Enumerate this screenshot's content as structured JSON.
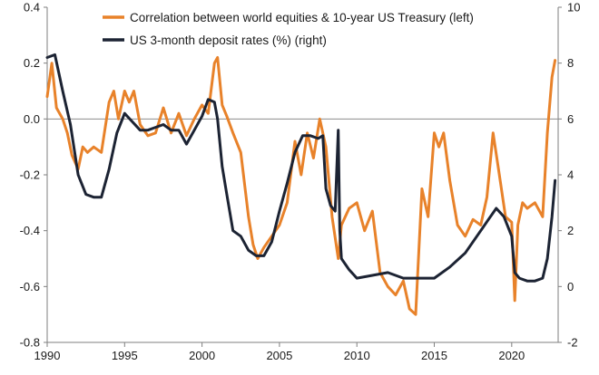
{
  "chart_data": {
    "type": "line",
    "title": "",
    "xlabel": "",
    "ylabel_left": "",
    "ylabel_right": "",
    "xlim": [
      1990,
      2023
    ],
    "ylim_left": [
      -0.8,
      0.4
    ],
    "ylim_right": [
      -2,
      10
    ],
    "x_ticks": [
      "1990",
      "1995",
      "2000",
      "2005",
      "2010",
      "2015",
      "2020"
    ],
    "y_ticks_left": [
      "0.4",
      "0.2",
      "0.0",
      "-0.2",
      "-0.4",
      "-0.6",
      "-0.8"
    ],
    "y_ticks_right": [
      "10",
      "8",
      "6",
      "4",
      "2",
      "0",
      "-2"
    ],
    "zero_line_left": 0.0,
    "legend_position": "top",
    "series": [
      {
        "name": "Correlation between world equities & 10-year US Treasury (left)",
        "axis": "left",
        "color": "#E8822A",
        "x": [
          1990.0,
          1990.3,
          1990.6,
          1991.0,
          1991.3,
          1991.6,
          1992.0,
          1992.3,
          1992.6,
          1993.0,
          1993.5,
          1994.0,
          1994.3,
          1994.6,
          1995.0,
          1995.3,
          1995.6,
          1996.0,
          1996.5,
          1997.0,
          1997.5,
          1998.0,
          1998.5,
          1999.0,
          1999.5,
          2000.0,
          2000.4,
          2000.8,
          2001.0,
          2001.3,
          2001.6,
          2002.0,
          2002.5,
          2003.0,
          2003.3,
          2003.6,
          2004.0,
          2004.5,
          2005.0,
          2005.5,
          2006.0,
          2006.4,
          2006.8,
          2007.2,
          2007.6,
          2008.0,
          2008.4,
          2008.8,
          2009.0,
          2009.5,
          2010.0,
          2010.5,
          2011.0,
          2011.5,
          2012.0,
          2012.5,
          2013.0,
          2013.4,
          2013.8,
          2014.2,
          2014.6,
          2015.0,
          2015.3,
          2015.6,
          2016.0,
          2016.5,
          2017.0,
          2017.5,
          2018.0,
          2018.4,
          2018.8,
          2019.2,
          2019.6,
          2020.0,
          2020.2,
          2020.4,
          2020.7,
          2021.0,
          2021.5,
          2022.0,
          2022.3,
          2022.6,
          2022.8
        ],
        "y": [
          0.08,
          0.2,
          0.04,
          0.0,
          -0.05,
          -0.13,
          -0.18,
          -0.1,
          -0.12,
          -0.1,
          -0.12,
          0.06,
          0.1,
          0.0,
          0.1,
          0.06,
          0.1,
          -0.02,
          -0.06,
          -0.05,
          0.04,
          -0.05,
          0.02,
          -0.06,
          0.0,
          0.05,
          0.02,
          0.2,
          0.22,
          0.05,
          0.01,
          -0.05,
          -0.12,
          -0.35,
          -0.45,
          -0.5,
          -0.46,
          -0.42,
          -0.38,
          -0.3,
          -0.08,
          -0.2,
          -0.05,
          -0.14,
          0.0,
          -0.1,
          -0.35,
          -0.5,
          -0.38,
          -0.32,
          -0.3,
          -0.4,
          -0.33,
          -0.55,
          -0.6,
          -0.63,
          -0.58,
          -0.68,
          -0.7,
          -0.25,
          -0.35,
          -0.05,
          -0.1,
          -0.05,
          -0.22,
          -0.38,
          -0.42,
          -0.36,
          -0.38,
          -0.28,
          -0.05,
          -0.2,
          -0.35,
          -0.37,
          -0.65,
          -0.38,
          -0.3,
          -0.32,
          -0.3,
          -0.35,
          -0.05,
          0.15,
          0.21
        ]
      },
      {
        "name": "US 3-month deposit rates (%) (right)",
        "axis": "right",
        "color": "#1C2333",
        "x": [
          1990.0,
          1990.5,
          1991.0,
          1991.5,
          1992.0,
          1992.5,
          1993.0,
          1993.5,
          1994.0,
          1994.5,
          1995.0,
          1995.5,
          1996.0,
          1996.5,
          1997.0,
          1997.5,
          1998.0,
          1998.5,
          1999.0,
          1999.5,
          2000.0,
          2000.4,
          2000.8,
          2001.0,
          2001.3,
          2001.6,
          2002.0,
          2002.5,
          2003.0,
          2003.5,
          2004.0,
          2004.5,
          2005.0,
          2005.5,
          2006.0,
          2006.5,
          2007.0,
          2007.5,
          2007.8,
          2008.0,
          2008.3,
          2008.6,
          2008.8,
          2008.9,
          2009.0,
          2009.5,
          2010.0,
          2011.0,
          2012.0,
          2013.0,
          2014.0,
          2015.0,
          2016.0,
          2017.0,
          2018.0,
          2018.5,
          2019.0,
          2019.5,
          2020.0,
          2020.2,
          2020.5,
          2021.0,
          2021.5,
          2022.0,
          2022.3,
          2022.6,
          2022.8
        ],
        "y": [
          8.2,
          8.3,
          7.0,
          5.8,
          4.0,
          3.3,
          3.2,
          3.2,
          4.2,
          5.5,
          6.2,
          5.9,
          5.6,
          5.6,
          5.7,
          5.8,
          5.6,
          5.6,
          5.1,
          5.6,
          6.1,
          6.7,
          6.6,
          6.0,
          4.3,
          3.3,
          2.0,
          1.8,
          1.3,
          1.1,
          1.1,
          1.6,
          2.7,
          3.7,
          4.8,
          5.4,
          5.4,
          5.3,
          5.4,
          3.5,
          2.9,
          2.7,
          5.6,
          2.0,
          1.0,
          0.6,
          0.3,
          0.4,
          0.5,
          0.3,
          0.3,
          0.3,
          0.7,
          1.2,
          2.0,
          2.4,
          2.8,
          2.5,
          1.8,
          0.5,
          0.3,
          0.2,
          0.2,
          0.3,
          1.0,
          2.5,
          3.8
        ]
      }
    ]
  }
}
